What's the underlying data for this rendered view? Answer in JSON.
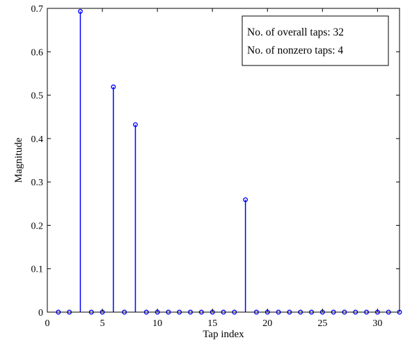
{
  "chart_data": {
    "type": "stem",
    "title": "",
    "xlabel": "Tap index",
    "ylabel": "Magnitude",
    "xlim": [
      0,
      32
    ],
    "ylim": [
      0,
      0.7
    ],
    "xticks": [
      0,
      5,
      10,
      15,
      20,
      25,
      30
    ],
    "yticks": [
      0,
      0.1,
      0.2,
      0.3,
      0.4,
      0.5,
      0.6,
      0.7
    ],
    "xtick_labels": [
      "0",
      "5",
      "10",
      "15",
      "20",
      "25",
      "30"
    ],
    "ytick_labels": [
      "0",
      "0.1",
      "0.2",
      "0.3",
      "0.4",
      "0.5",
      "0.6",
      "0.7"
    ],
    "grid": false,
    "series": [
      {
        "color": "#0000ff",
        "marker": "circle-open",
        "x": [
          1,
          2,
          3,
          4,
          5,
          6,
          7,
          8,
          9,
          10,
          11,
          12,
          13,
          14,
          15,
          16,
          17,
          18,
          19,
          20,
          21,
          22,
          23,
          24,
          25,
          26,
          27,
          28,
          29,
          30,
          31,
          32
        ],
        "values": [
          0,
          0,
          0.693,
          0,
          0,
          0.519,
          0,
          0.432,
          0,
          0,
          0,
          0,
          0,
          0,
          0,
          0,
          0,
          0.259,
          0,
          0,
          0,
          0,
          0,
          0,
          0,
          0,
          0,
          0,
          0,
          0,
          0,
          0
        ]
      }
    ],
    "annotation": {
      "position": "top-right",
      "lines": [
        "No. of overall taps: 32",
        "No. of nonzero taps: 4"
      ]
    }
  }
}
